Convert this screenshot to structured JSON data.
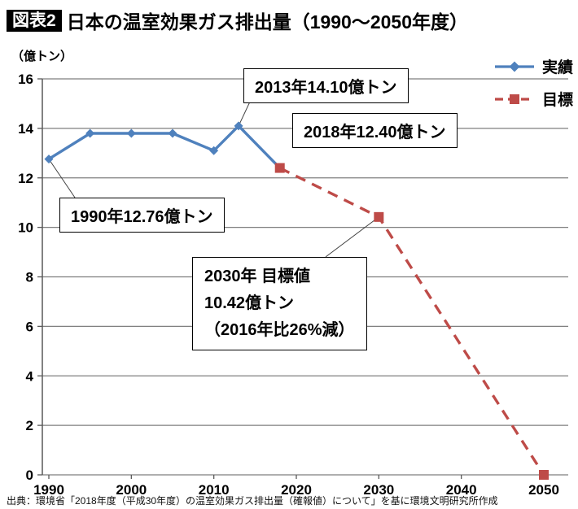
{
  "header": {
    "badge": "図表2",
    "title": "日本の温室効果ガス排出量（1990〜2050年度）"
  },
  "legend": {
    "actual": "実績",
    "target": "目標"
  },
  "colors": {
    "actual": "#4F81BD",
    "target": "#BE4B48",
    "grid": "#7F7F7F",
    "axis": "#595959",
    "leader": "#404040"
  },
  "annotations": [
    {
      "id": "a2013",
      "text": "2013年14.10億トン",
      "target": [
        2013,
        14.1
      ]
    },
    {
      "id": "a2018",
      "text": "2018年12.40億トン",
      "target": null
    },
    {
      "id": "a1990",
      "text": "1990年12.76億トン",
      "target": [
        1990,
        12.76
      ]
    },
    {
      "id": "a2030",
      "lines": [
        "2030年 目標値",
        "10.42億トン",
        "（2016年比26%減）"
      ],
      "target": [
        2030,
        10.42
      ]
    }
  ],
  "footer": "出典：環境省「2018年度（平成30年度）の温室効果ガス排出量（確報値）について」を基に環境文明研究所作成",
  "chart_data": {
    "type": "line",
    "title": "日本の温室効果ガス排出量（1990〜2050年度）",
    "ylabel": "（億トン）",
    "ylim": [
      0,
      16
    ],
    "ytick_step": 2,
    "xlim": [
      1990,
      2050
    ],
    "xticks": [
      1990,
      2000,
      2010,
      2020,
      2030,
      2040,
      2050
    ],
    "grid": true,
    "legend_position": "top-right",
    "series": [
      {
        "name": "実績",
        "color": "#4F81BD",
        "style": "solid",
        "marker": "diamond",
        "points": [
          [
            1990,
            12.76
          ],
          [
            1995,
            13.8
          ],
          [
            2000,
            13.8
          ],
          [
            2005,
            13.8
          ],
          [
            2010,
            13.1
          ],
          [
            2013,
            14.1
          ],
          [
            2018,
            12.4
          ]
        ]
      },
      {
        "name": "目標",
        "color": "#BE4B48",
        "style": "dashed",
        "marker": "square",
        "points": [
          [
            2018,
            12.4
          ],
          [
            2030,
            10.42
          ],
          [
            2050,
            0
          ]
        ]
      }
    ]
  }
}
